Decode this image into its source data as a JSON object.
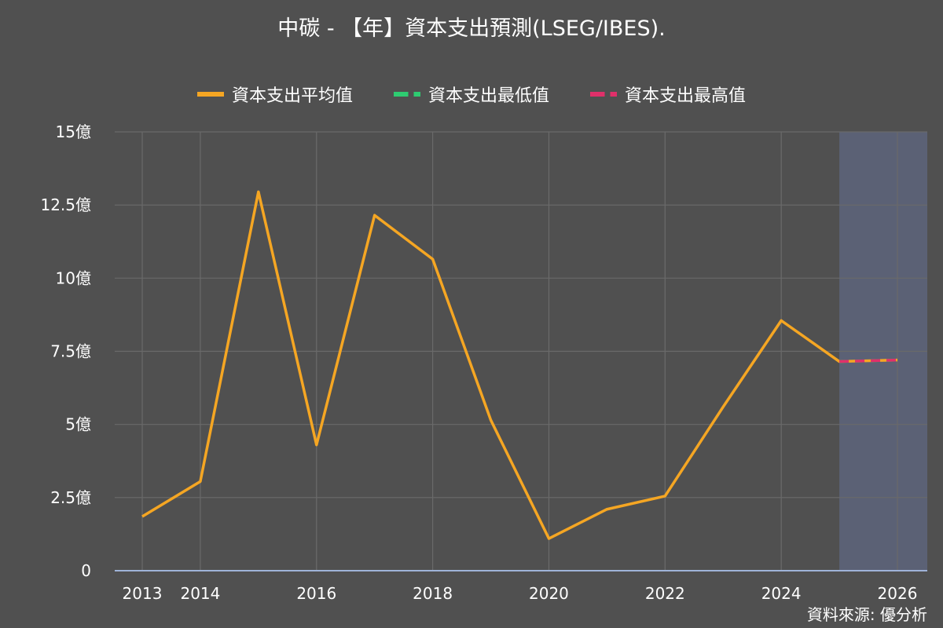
{
  "title": "中碳 - 【年】資本支出預測(LSEG/IBES).",
  "source": "資料來源: 優分析",
  "colors": {
    "background": "#505050",
    "grid": "#6a6a6a",
    "forecast_band": "#5b6175",
    "axis": "#9fb3d8",
    "average": "#f5a623",
    "low": "#2ecc71",
    "high": "#e0306a"
  },
  "chart_data": {
    "type": "line",
    "x": [
      2013,
      2014,
      2015,
      2016,
      2017,
      2018,
      2019,
      2020,
      2021,
      2022,
      2023,
      2024,
      2025,
      2026
    ],
    "x_tick_labels": [
      "2013",
      "2014",
      "2016",
      "2018",
      "2020",
      "2022",
      "2024",
      "2026"
    ],
    "y_tick_labels": [
      "0",
      "2.5億",
      "5億",
      "7.5億",
      "10億",
      "12.5億",
      "15億"
    ],
    "ylim": [
      0,
      15
    ],
    "y_unit": "億",
    "forecast_region": [
      2025,
      2026.5
    ],
    "legend": [
      "資本支出平均值",
      "資本支出最低值",
      "資本支出最高值"
    ],
    "series": [
      {
        "name": "資本支出平均值",
        "style": "solid",
        "x": [
          2013,
          2014,
          2015,
          2016,
          2017,
          2018,
          2019,
          2020,
          2021,
          2022,
          2023,
          2024,
          2025,
          2026
        ],
        "values": [
          1.85,
          3.05,
          12.95,
          4.3,
          12.15,
          10.65,
          5.15,
          1.1,
          2.1,
          2.55,
          5.6,
          8.55,
          7.15,
          7.2
        ]
      },
      {
        "name": "資本支出最低值",
        "style": "dashed",
        "x": [
          2025,
          2026
        ],
        "values": [
          7.15,
          7.2
        ]
      },
      {
        "name": "資本支出最高值",
        "style": "dashed",
        "x": [
          2025,
          2026
        ],
        "values": [
          7.15,
          7.2
        ]
      }
    ]
  }
}
